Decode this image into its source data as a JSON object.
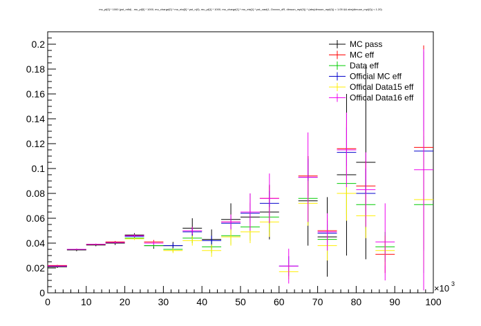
{
  "chart_data": {
    "type": "scatter",
    "title": "mu_pt[0] * 1000 (pst_mfid) , mu_pt[0] * 1000, mu_charge[0] * mu_eta[0] * pst_n(0), mu_pt[1] * 1000, mu_charge[1] * mu_eta[1] * pst_cast(1, Oxxxxx_dR, dimuon_mpl(0)) * (abs(dimuon_mpl(0)) < 1.05 && abs(dimuon_mpl(0)) < 1.20)",
    "xlabel": "",
    "ylabel": "",
    "x_multiplier": "×10",
    "x_multiplier_exp": "3",
    "xlim": [
      0,
      100
    ],
    "ylim": [
      0,
      0.21
    ],
    "x_ticks": [
      "0",
      "10",
      "20",
      "30",
      "40",
      "50",
      "60",
      "70",
      "80",
      "90",
      "100"
    ],
    "y_ticks": [
      "0",
      "0.02",
      "0.04",
      "0.06",
      "0.08",
      "0.1",
      "0.12",
      "0.14",
      "0.16",
      "0.18",
      "0.2"
    ],
    "grid": false,
    "legend_position": "top-right",
    "series": [
      {
        "name": "MC pass",
        "color": "#000000",
        "points": [
          {
            "x0": 0,
            "x1": 5,
            "y": 0.021,
            "err": 0.001
          },
          {
            "x0": 5,
            "x1": 10,
            "y": 0.0345,
            "err": 0.001
          },
          {
            "x0": 10,
            "x1": 15,
            "y": 0.0385,
            "err": 0.001
          },
          {
            "x0": 15,
            "x1": 20,
            "y": 0.04,
            "err": 0.0015
          },
          {
            "x0": 20,
            "x1": 25,
            "y": 0.0465,
            "err": 0.0015
          },
          {
            "x0": 25,
            "x1": 30,
            "y": 0.038,
            "err": 0.0025
          },
          {
            "x0": 30,
            "x1": 35,
            "y": 0.038,
            "err": 0.003
          },
          {
            "x0": 35,
            "x1": 40,
            "y": 0.052,
            "err": 0.008
          },
          {
            "x0": 40,
            "x1": 45,
            "y": 0.043,
            "err": 0.008
          },
          {
            "x0": 45,
            "x1": 50,
            "y": 0.059,
            "err": 0.013
          },
          {
            "x0": 50,
            "x1": 55,
            "y": 0.061,
            "err": 0.019
          },
          {
            "x0": 55,
            "x1": 60,
            "y": 0.065,
            "err": 0.022
          },
          {
            "x0": 65,
            "x1": 70,
            "y": 0.074,
            "err": 0.036
          },
          {
            "x0": 70,
            "x1": 75,
            "y": 0.045,
            "err": 0.032
          },
          {
            "x0": 75,
            "x1": 80,
            "y": 0.095,
            "err": 0.065
          },
          {
            "x0": 80,
            "x1": 85,
            "y": 0.105,
            "err": 0.078
          }
        ]
      },
      {
        "name": "MC eff",
        "color": "#ff0000",
        "points": [
          {
            "x0": 0,
            "x1": 5,
            "y": 0.022,
            "err": 0.0005
          },
          {
            "x0": 5,
            "x1": 10,
            "y": 0.035,
            "err": 0.0005
          },
          {
            "x0": 10,
            "x1": 15,
            "y": 0.039,
            "err": 0.0005
          },
          {
            "x0": 15,
            "x1": 20,
            "y": 0.041,
            "err": 0.0007
          },
          {
            "x0": 20,
            "x1": 25,
            "y": 0.046,
            "err": 0.001
          },
          {
            "x0": 25,
            "x1": 30,
            "y": 0.041,
            "err": 0.0015
          },
          {
            "x0": 35,
            "x1": 40,
            "y": 0.05,
            "err": 0.003
          },
          {
            "x0": 45,
            "x1": 50,
            "y": 0.057,
            "err": 0.006
          },
          {
            "x0": 50,
            "x1": 55,
            "y": 0.065,
            "err": 0.008
          },
          {
            "x0": 55,
            "x1": 60,
            "y": 0.076,
            "err": 0.01
          },
          {
            "x0": 65,
            "x1": 70,
            "y": 0.094,
            "err": 0.016
          },
          {
            "x0": 70,
            "x1": 75,
            "y": 0.05,
            "err": 0.01
          },
          {
            "x0": 75,
            "x1": 80,
            "y": 0.116,
            "err": 0.02
          },
          {
            "x0": 80,
            "x1": 85,
            "y": 0.086,
            "err": 0.02
          },
          {
            "x0": 85,
            "x1": 90,
            "y": 0.031,
            "err": 0.015
          },
          {
            "x0": 95,
            "x1": 100,
            "y": 0.117,
            "err": 0.082
          }
        ]
      },
      {
        "name": "Data eff",
        "color": "#00cc00",
        "points": [
          {
            "x0": 20,
            "x1": 25,
            "y": 0.044,
            "err": 0.001
          },
          {
            "x0": 25,
            "x1": 30,
            "y": 0.038,
            "err": 0.0015
          },
          {
            "x0": 30,
            "x1": 35,
            "y": 0.035,
            "err": 0.002
          },
          {
            "x0": 35,
            "x1": 40,
            "y": 0.044,
            "err": 0.004
          },
          {
            "x0": 40,
            "x1": 45,
            "y": 0.037,
            "err": 0.005
          },
          {
            "x0": 45,
            "x1": 50,
            "y": 0.046,
            "err": 0.007
          },
          {
            "x0": 50,
            "x1": 55,
            "y": 0.053,
            "err": 0.01
          },
          {
            "x0": 55,
            "x1": 60,
            "y": 0.061,
            "err": 0.012
          },
          {
            "x0": 65,
            "x1": 70,
            "y": 0.076,
            "err": 0.02
          },
          {
            "x0": 70,
            "x1": 75,
            "y": 0.043,
            "err": 0.012
          },
          {
            "x0": 75,
            "x1": 80,
            "y": 0.088,
            "err": 0.025
          },
          {
            "x0": 80,
            "x1": 85,
            "y": 0.071,
            "err": 0.02
          },
          {
            "x0": 85,
            "x1": 90,
            "y": 0.037,
            "err": 0.012
          },
          {
            "x0": 95,
            "x1": 100,
            "y": 0.071,
            "err": 0.055
          }
        ]
      },
      {
        "name": "Official MC eff",
        "color": "#0000cc",
        "points": [
          {
            "x0": 0,
            "x1": 5,
            "y": 0.0215,
            "err": 0.0005
          },
          {
            "x0": 20,
            "x1": 25,
            "y": 0.0455,
            "err": 0.001
          },
          {
            "x0": 30,
            "x1": 35,
            "y": 0.038,
            "err": 0.002
          },
          {
            "x0": 35,
            "x1": 40,
            "y": 0.049,
            "err": 0.003
          },
          {
            "x0": 40,
            "x1": 45,
            "y": 0.042,
            "err": 0.004
          },
          {
            "x0": 45,
            "x1": 50,
            "y": 0.056,
            "err": 0.006
          },
          {
            "x0": 50,
            "x1": 55,
            "y": 0.064,
            "err": 0.008
          },
          {
            "x0": 55,
            "x1": 60,
            "y": 0.072,
            "err": 0.01
          },
          {
            "x0": 60,
            "x1": 65,
            "y": 0.0215,
            "err": 0.008
          },
          {
            "x0": 65,
            "x1": 70,
            "y": 0.093,
            "err": 0.015
          },
          {
            "x0": 70,
            "x1": 75,
            "y": 0.048,
            "err": 0.01
          },
          {
            "x0": 75,
            "x1": 80,
            "y": 0.113,
            "err": 0.02
          },
          {
            "x0": 80,
            "x1": 85,
            "y": 0.08,
            "err": 0.02
          },
          {
            "x0": 95,
            "x1": 100,
            "y": 0.114,
            "err": 0.08
          }
        ]
      },
      {
        "name": "Offical Data15 eff",
        "color": "#ffee00",
        "points": [
          {
            "x0": 20,
            "x1": 25,
            "y": 0.0435,
            "err": 0.001
          },
          {
            "x0": 30,
            "x1": 35,
            "y": 0.034,
            "err": 0.002
          },
          {
            "x0": 35,
            "x1": 40,
            "y": 0.042,
            "err": 0.004
          },
          {
            "x0": 40,
            "x1": 45,
            "y": 0.034,
            "err": 0.005
          },
          {
            "x0": 45,
            "x1": 50,
            "y": 0.045,
            "err": 0.007
          },
          {
            "x0": 50,
            "x1": 55,
            "y": 0.049,
            "err": 0.009
          },
          {
            "x0": 55,
            "x1": 60,
            "y": 0.057,
            "err": 0.012
          },
          {
            "x0": 60,
            "x1": 65,
            "y": 0.017,
            "err": 0.006
          },
          {
            "x0": 65,
            "x1": 70,
            "y": 0.072,
            "err": 0.018
          },
          {
            "x0": 70,
            "x1": 75,
            "y": 0.038,
            "err": 0.012
          },
          {
            "x0": 75,
            "x1": 80,
            "y": 0.08,
            "err": 0.022
          },
          {
            "x0": 80,
            "x1": 85,
            "y": 0.062,
            "err": 0.018
          },
          {
            "x0": 85,
            "x1": 90,
            "y": 0.034,
            "err": 0.012
          },
          {
            "x0": 95,
            "x1": 100,
            "y": 0.075,
            "err": 0.055
          }
        ]
      },
      {
        "name": "Offical Data16 eff",
        "color": "#ee00ee",
        "points": [
          {
            "x0": 0,
            "x1": 5,
            "y": 0.0215,
            "err": 0.0005
          },
          {
            "x0": 5,
            "x1": 10,
            "y": 0.035,
            "err": 0.0005
          },
          {
            "x0": 10,
            "x1": 15,
            "y": 0.039,
            "err": 0.0005
          },
          {
            "x0": 15,
            "x1": 20,
            "y": 0.0405,
            "err": 0.0007
          },
          {
            "x0": 20,
            "x1": 25,
            "y": 0.046,
            "err": 0.001
          },
          {
            "x0": 25,
            "x1": 30,
            "y": 0.04,
            "err": 0.0015
          },
          {
            "x0": 35,
            "x1": 40,
            "y": 0.05,
            "err": 0.003
          },
          {
            "x0": 45,
            "x1": 50,
            "y": 0.057,
            "err": 0.006
          },
          {
            "x0": 50,
            "x1": 55,
            "y": 0.065,
            "err": 0.015
          },
          {
            "x0": 55,
            "x1": 60,
            "y": 0.076,
            "err": 0.02
          },
          {
            "x0": 60,
            "x1": 65,
            "y": 0.0215,
            "err": 0.014
          },
          {
            "x0": 65,
            "x1": 70,
            "y": 0.093,
            "err": 0.036
          },
          {
            "x0": 70,
            "x1": 75,
            "y": 0.049,
            "err": 0.015
          },
          {
            "x0": 75,
            "x1": 80,
            "y": 0.115,
            "err": 0.03
          },
          {
            "x0": 80,
            "x1": 85,
            "y": 0.083,
            "err": 0.03
          },
          {
            "x0": 85,
            "x1": 90,
            "y": 0.041,
            "err": 0.031
          },
          {
            "x0": 95,
            "x1": 100,
            "y": 0.099,
            "err": 0.097
          }
        ]
      }
    ]
  }
}
